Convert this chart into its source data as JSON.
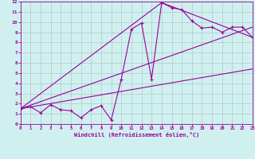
{
  "xlabel": "Windchill (Refroidissement éolien,°C)",
  "bg_color": "#d0f0f0",
  "line_color": "#990099",
  "grid_color": "#b0c8c8",
  "xlim": [
    0,
    23
  ],
  "ylim": [
    0,
    12
  ],
  "xticks": [
    0,
    1,
    2,
    3,
    4,
    5,
    6,
    7,
    8,
    9,
    10,
    11,
    12,
    13,
    14,
    15,
    16,
    17,
    18,
    19,
    20,
    21,
    22,
    23
  ],
  "yticks": [
    0,
    1,
    2,
    3,
    4,
    5,
    6,
    7,
    8,
    9,
    10,
    11,
    12
  ],
  "line1_x": [
    0,
    1,
    2,
    3,
    4,
    5,
    6,
    7,
    8,
    9,
    10,
    11,
    12,
    13,
    14,
    15,
    16,
    17,
    18,
    19,
    20,
    21,
    22,
    23
  ],
  "line1_y": [
    1.5,
    1.7,
    1.1,
    1.9,
    1.4,
    1.3,
    0.6,
    1.4,
    1.8,
    0.4,
    4.4,
    9.3,
    9.9,
    4.4,
    11.9,
    11.4,
    11.2,
    10.1,
    9.4,
    9.5,
    9.0,
    9.5,
    9.5,
    8.5
  ],
  "line2_x": [
    0,
    23
  ],
  "line2_y": [
    1.5,
    5.4
  ],
  "line3_x": [
    0,
    23
  ],
  "line3_y": [
    1.5,
    9.5
  ],
  "line4_x": [
    0,
    14,
    23
  ],
  "line4_y": [
    1.5,
    11.9,
    8.5
  ]
}
